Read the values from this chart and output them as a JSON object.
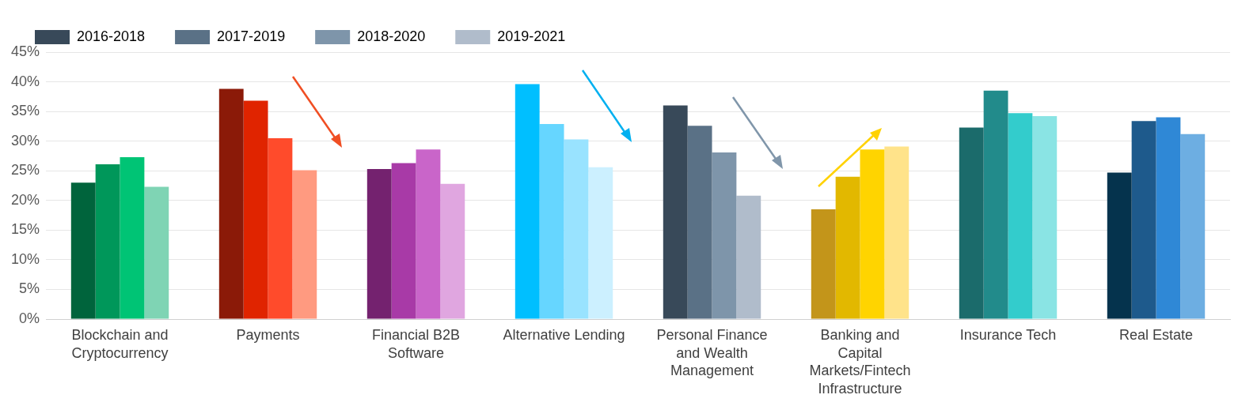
{
  "chart_data": {
    "type": "bar",
    "categories": [
      "Blockchain and Cryptocurrency",
      "Payments",
      "Financial B2B Software",
      "Alternative Lending",
      "Personal Finance and Wealth Management",
      "Banking and Capital Markets/Fintech Infrastructure",
      "Insurance Tech",
      "Real Estate"
    ],
    "series": [
      {
        "name": "2016-2018",
        "color": "#384959",
        "colors": [
          "#00643c",
          "#8b1a08",
          "#74226f",
          "#00bfff",
          "#384959",
          "#c3951a",
          "#1b6b6b",
          "#05334d"
        ],
        "values": [
          23.0,
          38.8,
          25.3,
          39.6,
          36.0,
          18.5,
          32.3,
          24.7
        ]
      },
      {
        "name": "2017-2019",
        "color": "#5a7186",
        "colors": [
          "#00975a",
          "#e02400",
          "#a83aa7",
          "#66d6ff",
          "#5a7186",
          "#e2b800",
          "#228b8b",
          "#1e5a8c"
        ],
        "values": [
          26.1,
          36.8,
          26.3,
          32.9,
          32.6,
          24.0,
          38.5,
          33.4
        ]
      },
      {
        "name": "2018-2020",
        "color": "#7e95aa",
        "colors": [
          "#00c475",
          "#ff4b2b",
          "#c965c9",
          "#99e3ff",
          "#7e95aa",
          "#ffd400",
          "#33cccc",
          "#2f88d6"
        ],
        "values": [
          27.3,
          30.5,
          28.6,
          30.3,
          28.1,
          28.6,
          34.7,
          34.0
        ]
      },
      {
        "name": "2019-2021",
        "color": "#b0bccb",
        "colors": [
          "#7fd4b4",
          "#ff9a80",
          "#e0a6e0",
          "#ccf0ff",
          "#b0bccb",
          "#ffe38a",
          "#8ae4e4",
          "#6daee2"
        ],
        "values": [
          22.3,
          25.1,
          22.8,
          25.6,
          20.8,
          29.1,
          34.2,
          31.2
        ]
      }
    ],
    "ylim": [
      0,
      45
    ],
    "yticks": [
      {
        "value": 0,
        "label": "0%"
      },
      {
        "value": 5,
        "label": "5%"
      },
      {
        "value": 10,
        "label": "10%"
      },
      {
        "value": 15,
        "label": "15%"
      },
      {
        "value": 20,
        "label": "20%"
      },
      {
        "value": 25,
        "label": "25%"
      },
      {
        "value": 30,
        "label": "30%"
      },
      {
        "value": 35,
        "label": "35%"
      },
      {
        "value": 40,
        "label": "40%"
      },
      {
        "value": 45,
        "label": "45%"
      }
    ],
    "grid": "y",
    "legend": "top left"
  }
}
